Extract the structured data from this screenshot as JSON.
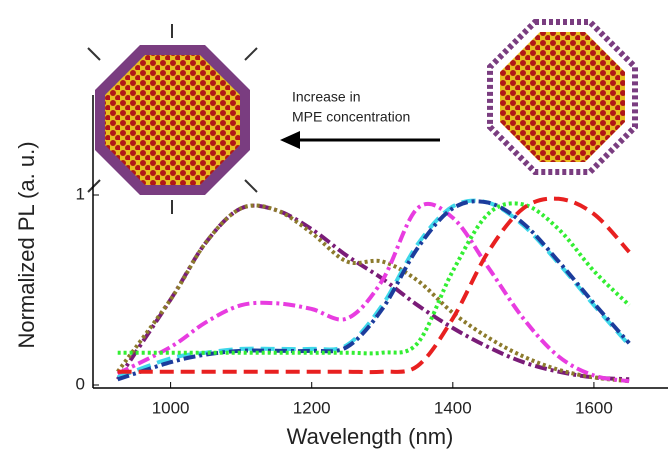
{
  "chart_data": {
    "type": "line",
    "x_label": "Wavelength (nm)",
    "y_label": "Normalized PL (a. u.)",
    "annotation": [
      "Increase in",
      "MPE concentration"
    ],
    "x": [
      925,
      1000,
      1050,
      1100,
      1150,
      1200,
      1250,
      1300,
      1350,
      1400,
      1450,
      1500,
      1550,
      1600,
      1650
    ],
    "xlim": [
      890,
      1705
    ],
    "xticks": [
      1000,
      1200,
      1400,
      1600
    ],
    "ylim": [
      0,
      1.5
    ],
    "yticks": [
      0,
      1
    ],
    "series": [
      {
        "color": "#7a1c78",
        "style": "dash-dot",
        "values": [
          0.03,
          0.45,
          0.75,
          0.93,
          0.92,
          0.82,
          0.68,
          0.56,
          0.42,
          0.3,
          0.2,
          0.12,
          0.07,
          0.04,
          0.03
        ]
      },
      {
        "color": "#8c7a2c",
        "style": "dot",
        "values": [
          0.07,
          0.45,
          0.75,
          0.93,
          0.92,
          0.8,
          0.65,
          0.65,
          0.55,
          0.38,
          0.25,
          0.15,
          0.08,
          0.04,
          0.02
        ]
      },
      {
        "color": "#e83ce0",
        "style": "dash-dot",
        "values": [
          0.06,
          0.2,
          0.33,
          0.42,
          0.43,
          0.4,
          0.35,
          0.55,
          0.93,
          0.88,
          0.62,
          0.35,
          0.15,
          0.05,
          0.02
        ]
      },
      {
        "color": "#3fd8ea",
        "style": "dash",
        "values": [
          0.04,
          0.14,
          0.17,
          0.19,
          0.19,
          0.19,
          0.21,
          0.42,
          0.74,
          0.94,
          0.96,
          0.84,
          0.64,
          0.42,
          0.21
        ]
      },
      {
        "color": "#1c3c9c",
        "style": "dash-dot",
        "values": [
          0.03,
          0.12,
          0.16,
          0.18,
          0.18,
          0.18,
          0.2,
          0.4,
          0.72,
          0.93,
          0.96,
          0.85,
          0.65,
          0.43,
          0.22
        ]
      },
      {
        "color": "#33ee33",
        "style": "dot",
        "values": [
          0.17,
          0.17,
          0.17,
          0.17,
          0.17,
          0.17,
          0.17,
          0.17,
          0.22,
          0.6,
          0.9,
          0.95,
          0.82,
          0.6,
          0.42
        ]
      },
      {
        "color": "#e82020",
        "style": "dash",
        "values": [
          0.07,
          0.07,
          0.07,
          0.07,
          0.07,
          0.07,
          0.07,
          0.07,
          0.1,
          0.35,
          0.7,
          0.93,
          0.98,
          0.9,
          0.7
        ]
      }
    ]
  }
}
